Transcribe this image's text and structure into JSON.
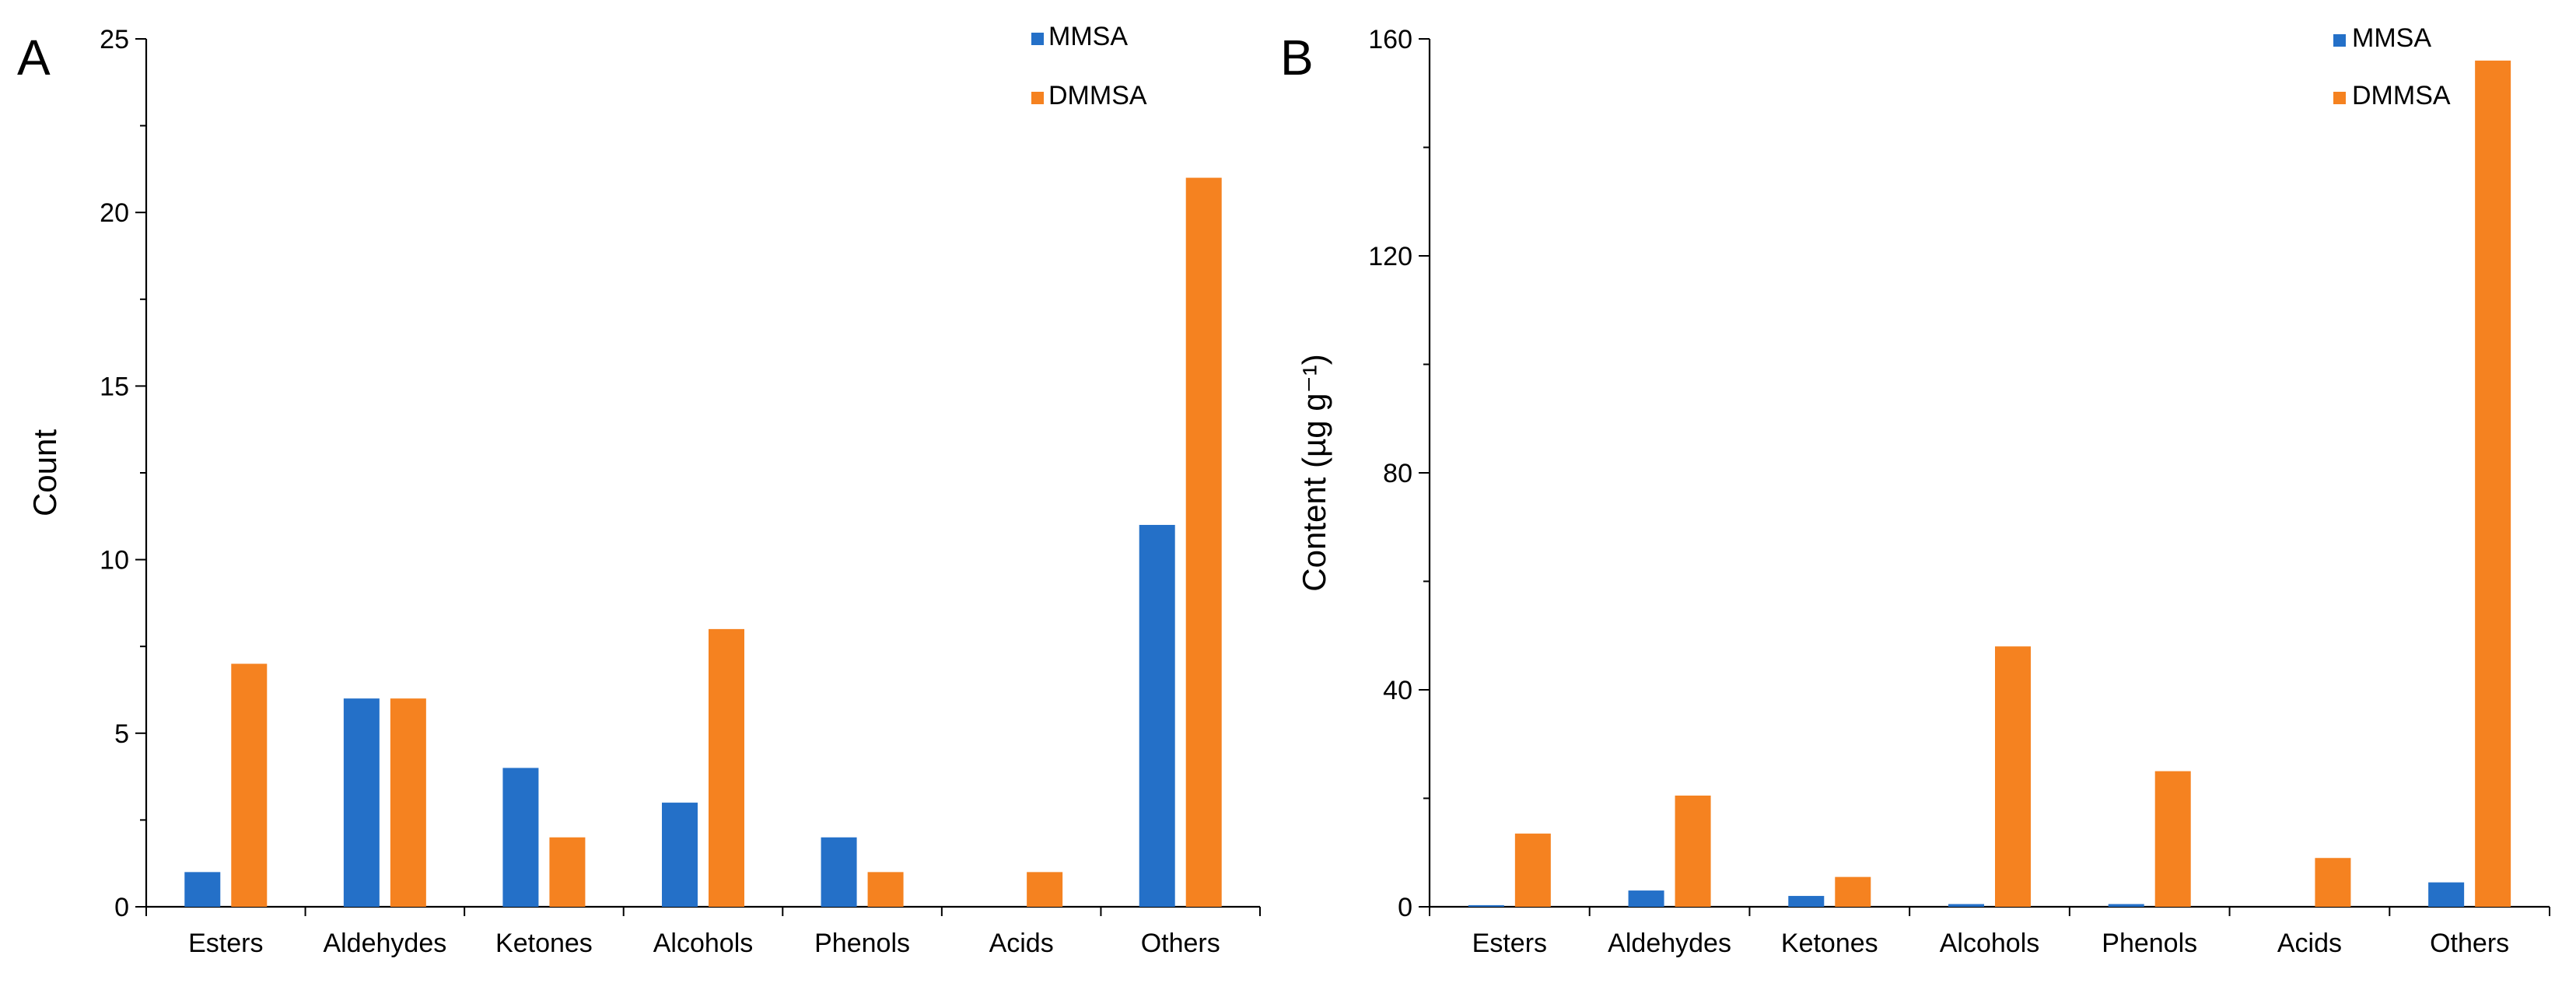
{
  "colors": {
    "MMSA": "#2470c8",
    "DMMSA": "#f58220"
  },
  "chart_data": [
    {
      "panel": "A",
      "type": "bar",
      "ylabel": "Count",
      "ylim": [
        0,
        25
      ],
      "yticks": [
        "0",
        "5",
        "10",
        "15",
        "20",
        "25"
      ],
      "categories": [
        "Esters",
        "Aldehydes",
        "Ketones",
        "Alcohols",
        "Phenols",
        "Acids",
        "Others"
      ],
      "series": [
        {
          "name": "MMSA",
          "values": [
            1,
            6,
            4,
            3,
            2,
            0,
            11
          ]
        },
        {
          "name": "DMMSA",
          "values": [
            7,
            6,
            2,
            8,
            1,
            1,
            21
          ]
        }
      ],
      "legend": "top-right",
      "grid": false
    },
    {
      "panel": "B",
      "type": "bar",
      "ylabel": "Content (µg g⁻¹)",
      "ylim": [
        0,
        160
      ],
      "yticks": [
        "0",
        "40",
        "80",
        "120",
        "160"
      ],
      "categories": [
        "Esters",
        "Aldehydes",
        "Ketones",
        "Alcohols",
        "Phenols",
        "Acids",
        "Others"
      ],
      "series": [
        {
          "name": "MMSA",
          "values": [
            0.3,
            3,
            2,
            0.5,
            0.5,
            0,
            4.5
          ]
        },
        {
          "name": "DMMSA",
          "values": [
            13.5,
            20.5,
            5.5,
            48,
            25,
            9,
            156
          ]
        }
      ],
      "legend": "top-right",
      "grid": false
    }
  ]
}
